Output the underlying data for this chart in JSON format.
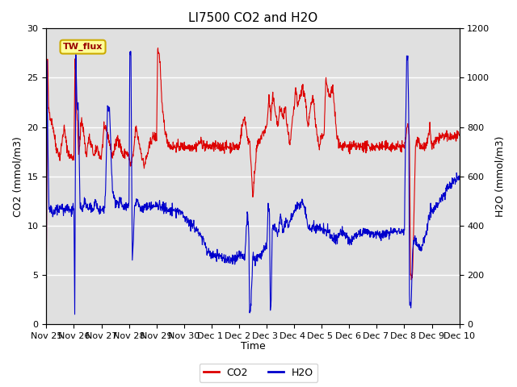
{
  "title": "LI7500 CO2 and H2O",
  "xlabel": "Time",
  "ylabel_left": "CO2 (mmol/m3)",
  "ylabel_right": "H2O (mmol/m3)",
  "ylim_left": [
    0,
    30
  ],
  "ylim_right": [
    0,
    1200
  ],
  "legend_label_co2": "CO2",
  "legend_label_h2o": "H2O",
  "annotation_text": "TW_flux",
  "background_color": "#e0e0e0",
  "co2_color": "#dd0000",
  "h2o_color": "#0000cc",
  "grid_color": "#ffffff",
  "annotation_bg": "#ffff99",
  "annotation_border": "#ccaa00",
  "tick_labels": [
    "Nov 25",
    "Nov 26",
    "Nov 27",
    "Nov 28",
    "Nov 29",
    "Nov 30",
    "Dec 1 ",
    "Dec 2 ",
    "Dec 3 ",
    "Dec 4 ",
    "Dec 5 ",
    "Dec 6 ",
    "Dec 7 ",
    "Dec 8 ",
    "Dec 9",
    "Dec 10"
  ],
  "tick_positions": [
    0,
    1,
    2,
    3,
    4,
    5,
    6,
    7,
    8,
    9,
    10,
    11,
    12,
    13,
    14,
    15
  ],
  "n_points": 1500,
  "seed": 42
}
